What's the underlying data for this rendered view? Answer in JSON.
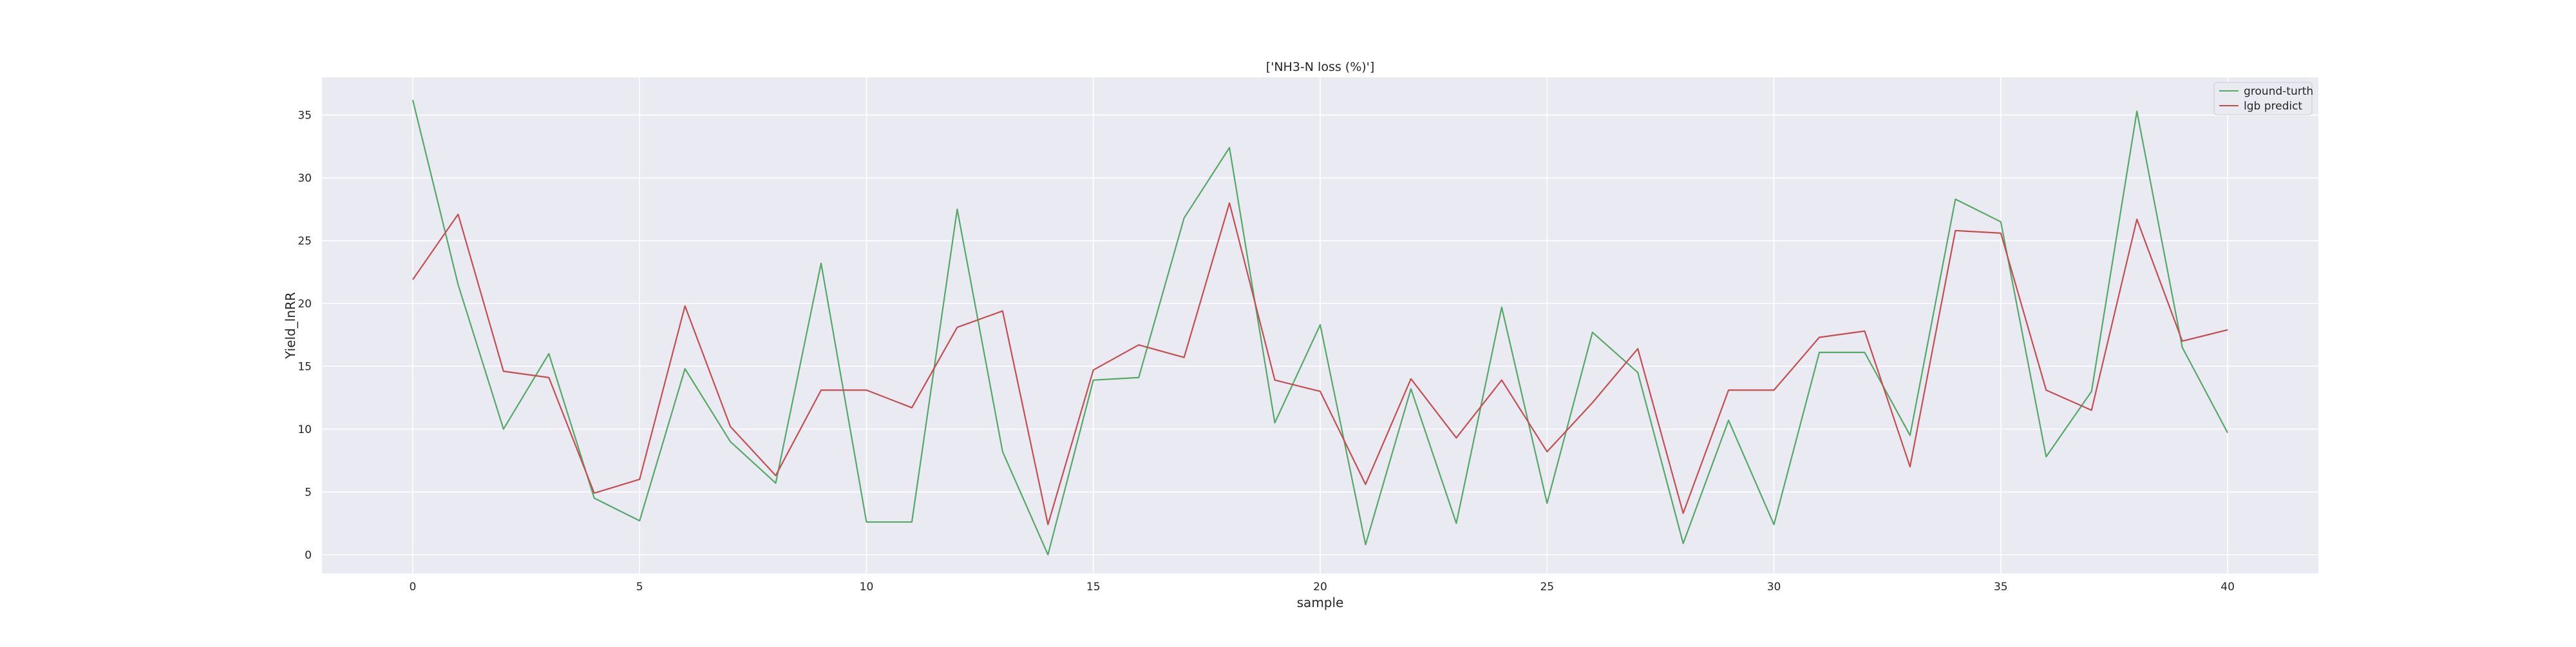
{
  "chart_data": {
    "type": "line",
    "title": "['NH3-N loss (%)']",
    "xlabel": "sample",
    "ylabel": "Yield_lnRR",
    "xlim": [
      -2,
      42
    ],
    "ylim": [
      -1.5,
      38
    ],
    "x": [
      0,
      1,
      2,
      3,
      4,
      5,
      6,
      7,
      8,
      9,
      10,
      11,
      12,
      13,
      14,
      15,
      16,
      17,
      18,
      19,
      20,
      21,
      22,
      23,
      24,
      25,
      26,
      27,
      28,
      29,
      30,
      31,
      32,
      33,
      34,
      35,
      36,
      37,
      38,
      39,
      40
    ],
    "x_ticks": [
      0,
      5,
      10,
      15,
      20,
      25,
      30,
      35,
      40
    ],
    "y_ticks": [
      0,
      5,
      10,
      15,
      20,
      25,
      30,
      35
    ],
    "grid": true,
    "legend_position": "top-right",
    "series": [
      {
        "name": "ground-turth",
        "color": "#55a868",
        "values": [
          36.2,
          21.5,
          10.0,
          16.0,
          4.5,
          2.7,
          14.8,
          9.0,
          5.7,
          23.2,
          2.6,
          2.6,
          27.5,
          8.2,
          0.0,
          13.9,
          14.1,
          26.8,
          32.4,
          10.5,
          18.3,
          0.8,
          13.2,
          2.5,
          19.7,
          4.1,
          17.7,
          14.5,
          0.9,
          10.7,
          2.4,
          16.1,
          16.1,
          9.5,
          28.3,
          26.5,
          7.8,
          13.0,
          35.3,
          16.5,
          9.7
        ]
      },
      {
        "name": "lgb predict",
        "color": "#c44e52",
        "values": [
          21.9,
          27.1,
          14.6,
          14.1,
          4.9,
          6.0,
          19.8,
          10.2,
          6.3,
          13.1,
          13.1,
          11.7,
          18.1,
          19.4,
          2.4,
          14.7,
          16.7,
          15.7,
          28.0,
          13.9,
          13.0,
          5.6,
          14.0,
          9.3,
          13.9,
          8.2,
          12.1,
          16.4,
          3.3,
          13.1,
          13.1,
          17.3,
          17.8,
          7.0,
          25.8,
          25.6,
          13.1,
          11.5,
          26.7,
          17.0,
          17.9
        ]
      }
    ]
  }
}
